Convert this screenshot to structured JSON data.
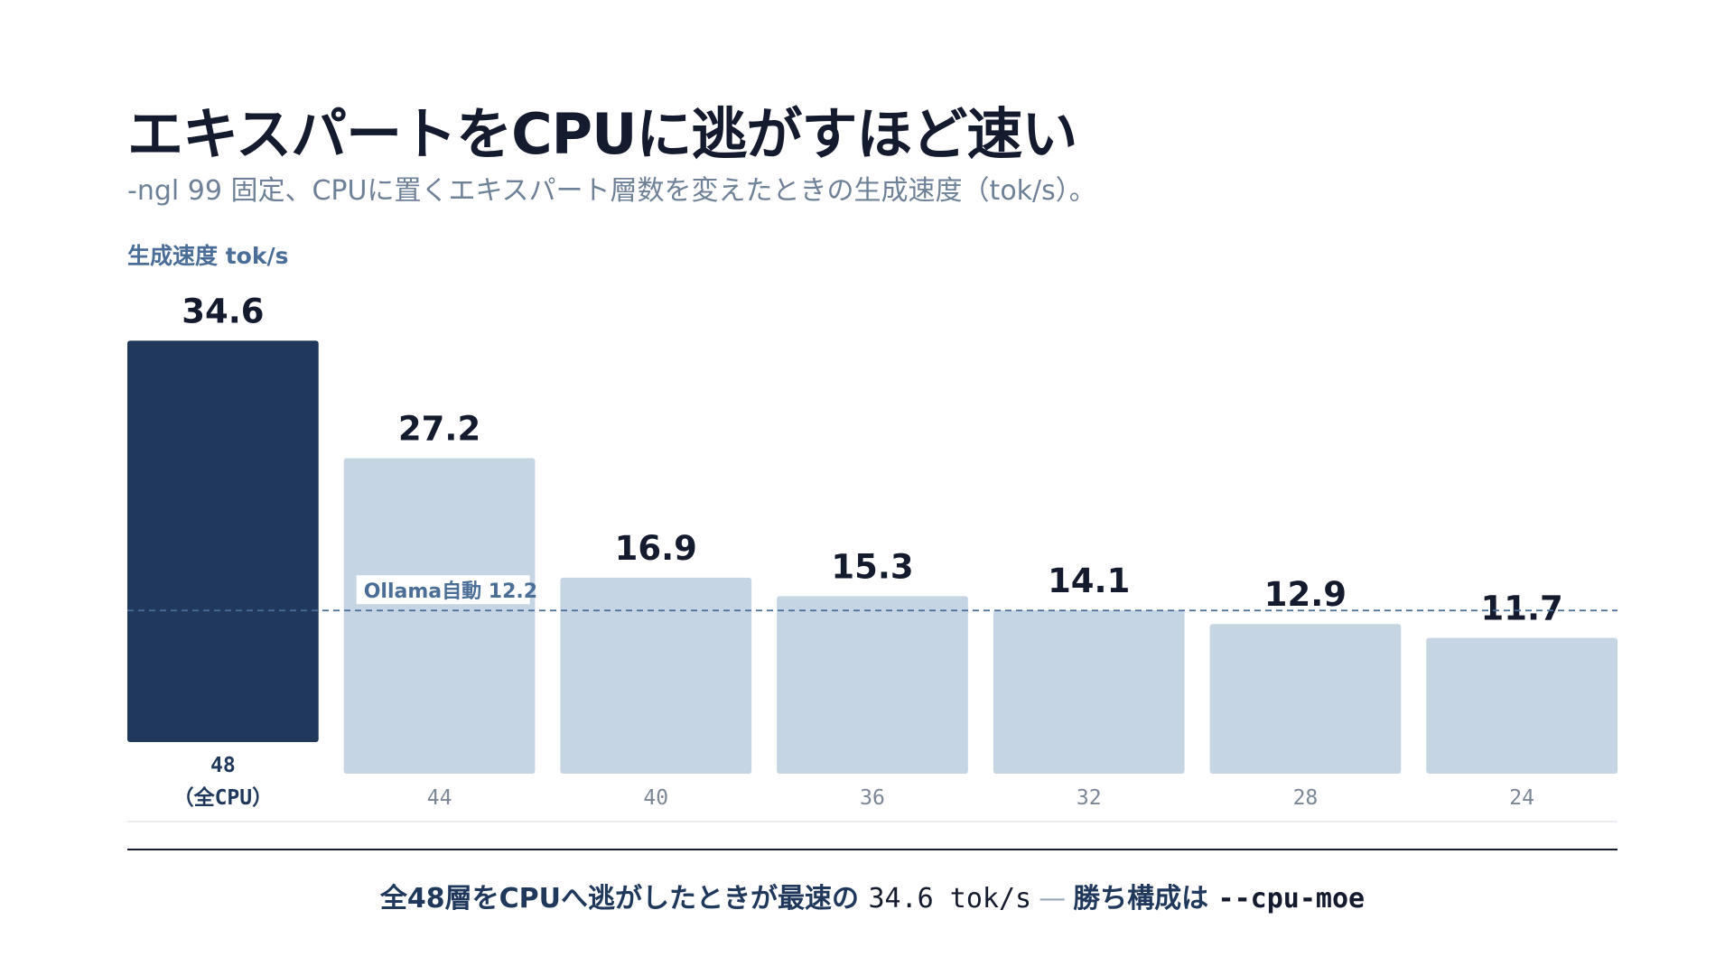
{
  "title": "エキスパートをCPUに逃がすほど速い",
  "subtitle": "-ngl 99 固定、CPUに置くエキスパート層数を変えたときの生成速度（tok/s）。",
  "chart_data": {
    "type": "bar",
    "ylabel": "生成速度 tok/s",
    "categories": [
      [
        "48",
        "（全CPU）"
      ],
      [
        "44"
      ],
      [
        "40"
      ],
      [
        "36"
      ],
      [
        "32"
      ],
      [
        "28"
      ],
      [
        "24"
      ]
    ],
    "values": [
      34.6,
      27.2,
      16.9,
      15.3,
      14.1,
      12.9,
      11.7
    ],
    "value_labels": [
      "34.6",
      "27.2",
      "16.9",
      "15.3",
      "14.1",
      "12.9",
      "11.7"
    ],
    "highlight_index": 0,
    "reference_line": {
      "label": "Ollama自動 12.2",
      "value": 12.2
    },
    "colors": {
      "highlight": "#1f385c",
      "bar": "#c6d5e4",
      "reference": "#4b6e98"
    }
  },
  "takeaway": {
    "prefix": "全48層をCPUへ逃がしたときが最速の",
    "value": "34.6 tok/s",
    "separator": "—",
    "mid": "勝ち構成は",
    "config": "--cpu-moe"
  }
}
